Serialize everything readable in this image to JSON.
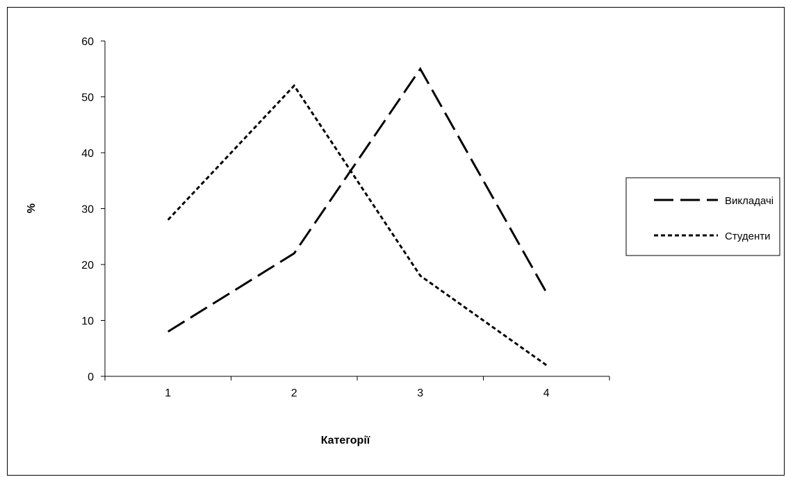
{
  "chart_data": {
    "type": "line",
    "title": "",
    "xlabel": "Категорії",
    "ylabel": "%",
    "categories": [
      "1",
      "2",
      "3",
      "4"
    ],
    "ylim": [
      0,
      60
    ],
    "yticks": [
      0,
      10,
      20,
      30,
      40,
      50,
      60
    ],
    "grid": false,
    "legend_position": "right",
    "series": [
      {
        "name": "Викладачі",
        "values": [
          8,
          22,
          55,
          15
        ],
        "line_style": "long-dash",
        "color": "#000000"
      },
      {
        "name": "Студенти",
        "values": [
          28,
          52,
          18,
          2
        ],
        "line_style": "short-dash",
        "color": "#000000"
      }
    ]
  }
}
